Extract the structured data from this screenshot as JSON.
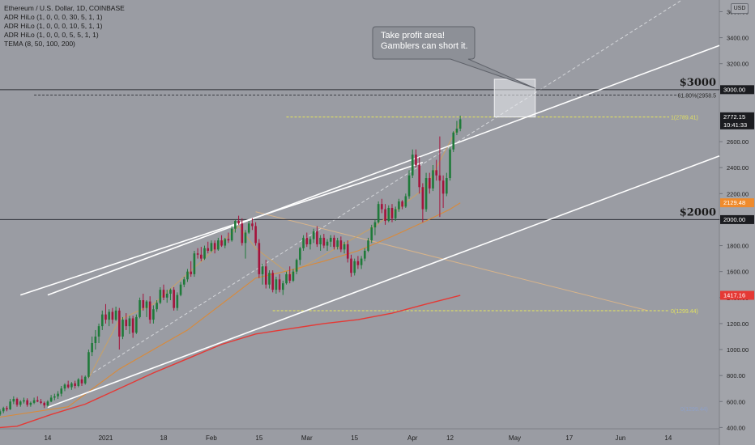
{
  "legend": {
    "symbol": "Ethereum / U.S. Dollar, 1D, COINBASE",
    "indicators": [
      "ADR HiLo (1, 0, 0, 0, 30, 5, 1, 1)",
      "ADR HiLo (1, 0, 0, 0, 10, 5, 1, 1)",
      "ADR HiLo (1, 0, 0, 0, 5, 5, 1, 1)",
      "TEMA (8, 50, 100, 200)"
    ]
  },
  "currency_badge": "USD",
  "callout": {
    "line1": "Take profit area!",
    "line2": "Gamblers can short it."
  },
  "levels": {
    "l3000": "$3000",
    "l2000": "$2000"
  },
  "fib": {
    "f618": "61.80%(2958.5",
    "f1": "1(2789.41)",
    "f0": "0(1299.44)",
    "f0_faint": "0(1299.44)"
  },
  "price_tags": {
    "last": "2772.15",
    "countdown": "10:41:33",
    "t3000": "3000.00",
    "tema": "2129.48",
    "t2000": "2000.00",
    "red": "1417.16"
  },
  "colors": {
    "background": "#9a9ca3",
    "up": "#1f7a3a",
    "down": "#a4133c",
    "channel": "#ffffff",
    "fib_yellow": "#e8e85a",
    "tema_orange": "#d98a3a",
    "tema_red": "#e53935",
    "guide": "#d8b48a"
  },
  "chart_data": {
    "type": "candlestick",
    "title": "Ethereum / U.S. Dollar, 1D, COINBASE",
    "y_ticks": [
      400,
      600,
      800,
      1000,
      1200,
      1400,
      1600,
      1800,
      2000,
      2200,
      2400,
      2600,
      3000,
      3200,
      3400,
      3600
    ],
    "ylim": [
      390,
      3690
    ],
    "x_ticks": [
      {
        "label": "14",
        "x": 14
      },
      {
        "label": "2021",
        "x": 31
      },
      {
        "label": "18",
        "x": 48
      },
      {
        "label": "Feb",
        "x": 62
      },
      {
        "label": "15",
        "x": 76
      },
      {
        "label": "Mar",
        "x": 90
      },
      {
        "label": "15",
        "x": 104
      },
      {
        "label": "Apr",
        "x": 121
      },
      {
        "label": "12",
        "x": 132
      },
      {
        "label": "May",
        "x": 151
      },
      {
        "label": "17",
        "x": 167
      },
      {
        "label": "Jun",
        "x": 182
      },
      {
        "label": "14",
        "x": 196
      }
    ],
    "xlim": [
      0,
      211
    ],
    "candles": [
      [
        0,
        500,
        540,
        490,
        525
      ],
      [
        1,
        525,
        560,
        510,
        550
      ],
      [
        2,
        550,
        565,
        525,
        540
      ],
      [
        3,
        540,
        620,
        535,
        600
      ],
      [
        4,
        600,
        640,
        580,
        620
      ],
      [
        5,
        620,
        630,
        560,
        575
      ],
      [
        6,
        575,
        610,
        560,
        600
      ],
      [
        7,
        600,
        630,
        585,
        610
      ],
      [
        8,
        610,
        625,
        560,
        575
      ],
      [
        9,
        575,
        600,
        560,
        590
      ],
      [
        10,
        590,
        630,
        580,
        610
      ],
      [
        11,
        610,
        640,
        595,
        600
      ],
      [
        12,
        600,
        620,
        580,
        590
      ],
      [
        13,
        590,
        600,
        550,
        570
      ],
      [
        14,
        570,
        610,
        560,
        600
      ],
      [
        15,
        600,
        650,
        595,
        630
      ],
      [
        16,
        630,
        660,
        610,
        640
      ],
      [
        17,
        640,
        680,
        620,
        660
      ],
      [
        18,
        660,
        720,
        640,
        700
      ],
      [
        19,
        700,
        740,
        680,
        730
      ],
      [
        20,
        730,
        760,
        700,
        710
      ],
      [
        21,
        710,
        750,
        690,
        740
      ],
      [
        22,
        740,
        760,
        700,
        720
      ],
      [
        23,
        720,
        780,
        710,
        770
      ],
      [
        24,
        770,
        800,
        720,
        740
      ],
      [
        25,
        740,
        800,
        730,
        790
      ],
      [
        26,
        790,
        1000,
        780,
        980
      ],
      [
        27,
        980,
        1100,
        950,
        1050
      ],
      [
        28,
        1050,
        1150,
        1000,
        1100
      ],
      [
        29,
        1100,
        1200,
        1050,
        1180
      ],
      [
        30,
        1180,
        1300,
        1150,
        1270
      ],
      [
        31,
        1270,
        1350,
        1200,
        1230
      ],
      [
        32,
        1230,
        1310,
        1180,
        1290
      ],
      [
        33,
        1290,
        1320,
        1200,
        1230
      ],
      [
        34,
        1230,
        1330,
        1220,
        1300
      ],
      [
        35,
        1300,
        1320,
        1000,
        1100
      ],
      [
        36,
        1100,
        1250,
        1080,
        1230
      ],
      [
        37,
        1230,
        1280,
        1150,
        1180
      ],
      [
        38,
        1180,
        1260,
        1120,
        1240
      ],
      [
        39,
        1240,
        1260,
        1090,
        1130
      ],
      [
        40,
        1130,
        1270,
        1120,
        1250
      ],
      [
        41,
        1250,
        1400,
        1240,
        1380
      ],
      [
        42,
        1380,
        1430,
        1300,
        1320
      ],
      [
        43,
        1320,
        1380,
        1250,
        1370
      ],
      [
        44,
        1370,
        1410,
        1200,
        1230
      ],
      [
        45,
        1230,
        1340,
        1200,
        1310
      ],
      [
        46,
        1310,
        1380,
        1290,
        1360
      ],
      [
        47,
        1360,
        1480,
        1350,
        1460
      ],
      [
        48,
        1460,
        1500,
        1380,
        1400
      ],
      [
        49,
        1400,
        1460,
        1360,
        1430
      ],
      [
        50,
        1430,
        1470,
        1380,
        1460
      ],
      [
        51,
        1460,
        1480,
        1300,
        1320
      ],
      [
        52,
        1320,
        1440,
        1300,
        1420
      ],
      [
        53,
        1420,
        1520,
        1410,
        1500
      ],
      [
        54,
        1500,
        1560,
        1480,
        1540
      ],
      [
        55,
        1540,
        1620,
        1520,
        1600
      ],
      [
        56,
        1600,
        1680,
        1560,
        1580
      ],
      [
        57,
        1580,
        1760,
        1560,
        1740
      ],
      [
        58,
        1740,
        1780,
        1700,
        1730
      ],
      [
        59,
        1730,
        1790,
        1680,
        1700
      ],
      [
        60,
        1700,
        1800,
        1690,
        1780
      ],
      [
        61,
        1780,
        1830,
        1740,
        1760
      ],
      [
        62,
        1760,
        1840,
        1750,
        1820
      ],
      [
        63,
        1820,
        1840,
        1740,
        1770
      ],
      [
        64,
        1770,
        1860,
        1760,
        1840
      ],
      [
        65,
        1840,
        1880,
        1790,
        1800
      ],
      [
        66,
        1800,
        1860,
        1780,
        1850
      ],
      [
        67,
        1850,
        1900,
        1820,
        1840
      ],
      [
        68,
        1840,
        1950,
        1830,
        1930
      ],
      [
        69,
        1930,
        2000,
        1900,
        1990
      ],
      [
        70,
        1990,
        2030,
        1960,
        1970
      ],
      [
        71,
        1970,
        2010,
        1800,
        1820
      ],
      [
        72,
        1820,
        1920,
        1700,
        1900
      ],
      [
        73,
        1900,
        1990,
        1890,
        1970
      ],
      [
        74,
        1970,
        2010,
        1920,
        1950
      ],
      [
        75,
        1950,
        1980,
        1800,
        1820
      ],
      [
        76,
        1820,
        1850,
        1550,
        1580
      ],
      [
        77,
        1580,
        1660,
        1500,
        1640
      ],
      [
        78,
        1640,
        1690,
        1470,
        1500
      ],
      [
        79,
        1500,
        1610,
        1470,
        1590
      ],
      [
        80,
        1590,
        1610,
        1440,
        1460
      ],
      [
        81,
        1460,
        1560,
        1430,
        1540
      ],
      [
        82,
        1540,
        1580,
        1440,
        1460
      ],
      [
        83,
        1460,
        1530,
        1420,
        1510
      ],
      [
        84,
        1510,
        1600,
        1500,
        1580
      ],
      [
        85,
        1580,
        1640,
        1510,
        1530
      ],
      [
        86,
        1530,
        1620,
        1520,
        1600
      ],
      [
        87,
        1600,
        1700,
        1580,
        1690
      ],
      [
        88,
        1690,
        1790,
        1650,
        1780
      ],
      [
        89,
        1780,
        1880,
        1760,
        1860
      ],
      [
        90,
        1860,
        1900,
        1790,
        1810
      ],
      [
        91,
        1810,
        1870,
        1770,
        1850
      ],
      [
        92,
        1850,
        1930,
        1820,
        1910
      ],
      [
        93,
        1910,
        1950,
        1790,
        1810
      ],
      [
        94,
        1810,
        1880,
        1760,
        1860
      ],
      [
        95,
        1860,
        1890,
        1780,
        1800
      ],
      [
        96,
        1800,
        1850,
        1760,
        1830
      ],
      [
        97,
        1830,
        1880,
        1790,
        1860
      ],
      [
        98,
        1860,
        1880,
        1770,
        1790
      ],
      [
        99,
        1790,
        1860,
        1770,
        1840
      ],
      [
        100,
        1840,
        1870,
        1750,
        1770
      ],
      [
        101,
        1770,
        1830,
        1740,
        1810
      ],
      [
        102,
        1810,
        1840,
        1670,
        1700
      ],
      [
        103,
        1700,
        1730,
        1560,
        1590
      ],
      [
        104,
        1590,
        1700,
        1570,
        1680
      ],
      [
        105,
        1680,
        1720,
        1620,
        1650
      ],
      [
        106,
        1650,
        1720,
        1620,
        1700
      ],
      [
        107,
        1700,
        1780,
        1680,
        1760
      ],
      [
        108,
        1760,
        1860,
        1750,
        1840
      ],
      [
        109,
        1840,
        1960,
        1820,
        1940
      ],
      [
        110,
        1940,
        2000,
        1880,
        1980
      ],
      [
        111,
        1980,
        2140,
        1970,
        2120
      ],
      [
        112,
        2120,
        2160,
        2050,
        2080
      ],
      [
        113,
        2080,
        2120,
        1960,
        1990
      ],
      [
        114,
        1990,
        2110,
        1980,
        2090
      ],
      [
        115,
        2090,
        2120,
        1980,
        2010
      ],
      [
        116,
        2010,
        2100,
        1990,
        2080
      ],
      [
        117,
        2080,
        2160,
        2060,
        2140
      ],
      [
        118,
        2140,
        2150,
        2080,
        2100
      ],
      [
        119,
        2100,
        2200,
        2090,
        2180
      ],
      [
        120,
        2180,
        2380,
        2160,
        2340
      ],
      [
        121,
        2340,
        2540,
        2320,
        2500
      ],
      [
        122,
        2500,
        2540,
        2400,
        2420
      ],
      [
        123,
        2420,
        2480,
        2200,
        2250
      ],
      [
        124,
        2250,
        2280,
        1980,
        2080
      ],
      [
        125,
        2080,
        2360,
        2060,
        2320
      ],
      [
        126,
        2320,
        2360,
        2200,
        2240
      ],
      [
        127,
        2240,
        2420,
        2220,
        2380
      ],
      [
        128,
        2380,
        2460,
        2300,
        2340
      ],
      [
        129,
        2340,
        2640,
        2020,
        2300
      ],
      [
        130,
        2300,
        2340,
        2090,
        2200
      ],
      [
        131,
        2200,
        2360,
        2180,
        2320
      ],
      [
        132,
        2320,
        2560,
        2300,
        2540
      ],
      [
        133,
        2540,
        2680,
        2520,
        2670
      ],
      [
        134,
        2670,
        2760,
        2650,
        2700
      ],
      [
        135,
        2700,
        2800,
        2680,
        2772
      ]
    ],
    "series": [
      {
        "name": "TEMA 8",
        "points": [
          [
            26,
            780
          ],
          [
            35,
            1230
          ],
          [
            45,
            1350
          ],
          [
            60,
            1700
          ],
          [
            70,
            1950
          ],
          [
            75,
            1780
          ],
          [
            85,
            1580
          ],
          [
            100,
            1800
          ],
          [
            110,
            1950
          ],
          [
            125,
            2250
          ],
          [
            135,
            2750
          ]
        ]
      },
      {
        "name": "TEMA 50",
        "points": [
          [
            0,
            480
          ],
          [
            20,
            560
          ],
          [
            35,
            850
          ],
          [
            45,
            1000
          ],
          [
            55,
            1150
          ],
          [
            65,
            1350
          ],
          [
            75,
            1550
          ],
          [
            85,
            1610
          ],
          [
            95,
            1680
          ],
          [
            105,
            1760
          ],
          [
            115,
            1870
          ],
          [
            125,
            1990
          ],
          [
            132,
            2080
          ],
          [
            135,
            2129
          ]
        ]
      },
      {
        "name": "TEMA 100",
        "points": [
          [
            0,
            400
          ],
          [
            5,
            410
          ],
          [
            15,
            500
          ],
          [
            25,
            580
          ],
          [
            35,
            700
          ],
          [
            45,
            820
          ],
          [
            55,
            930
          ],
          [
            65,
            1040
          ],
          [
            75,
            1120
          ],
          [
            85,
            1160
          ],
          [
            95,
            1200
          ],
          [
            105,
            1230
          ],
          [
            115,
            1280
          ],
          [
            125,
            1350
          ],
          [
            135,
            1417
          ]
        ]
      }
    ],
    "annotations": {
      "resistance_3000": 3000,
      "support_2000": 2000,
      "fib_618": 2958.5,
      "fib_1": 2789.41,
      "fib_0": 1299.44,
      "channel_upper": [
        [
          14,
          1420
        ],
        [
          211,
          3340
        ]
      ],
      "channel_lower": [
        [
          14,
          555
        ],
        [
          211,
          2490
        ]
      ],
      "channel_mid": [
        [
          6,
          1420
        ],
        [
          124,
          2440
        ]
      ],
      "dashed_extension": [
        [
          26,
          800
        ],
        [
          200,
          3690
        ]
      ],
      "guide_line": [
        [
          75,
          2060
        ],
        [
          190,
          1300
        ]
      ],
      "take_profit_box": {
        "x0": 145,
        "x1": 157,
        "y0": 2790,
        "y1": 3080
      }
    }
  }
}
